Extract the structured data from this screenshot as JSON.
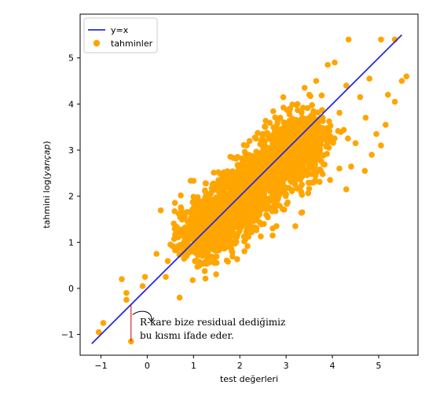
{
  "chart_data": {
    "type": "scatter",
    "title": "",
    "xlabel": "test değerleri",
    "ylabel_prefix": "tahmini log(",
    "ylabel_italic": "yarıçap",
    "ylabel_suffix": ")",
    "xlim": [
      -1.45,
      5.85
    ],
    "ylim": [
      -1.45,
      5.95
    ],
    "xticks": [
      -1,
      0,
      1,
      2,
      3,
      4,
      5
    ],
    "yticks": [
      -1,
      0,
      1,
      2,
      3,
      4,
      5
    ],
    "grid": false,
    "legend_position": "top-left",
    "series": [
      {
        "name": "y=x",
        "kind": "line",
        "color": "#2a2ad6",
        "x": [
          -1.2,
          5.5
        ],
        "y": [
          -1.2,
          5.5
        ]
      },
      {
        "name": "tahminler",
        "kind": "scatter",
        "color": "#ffa500",
        "cluster": {
          "center_from": [
            1.0,
            1.0
          ],
          "center_to": [
            3.6,
            3.4
          ],
          "spread_along": 0.85,
          "spread_across": 0.32,
          "count": 2400,
          "seed": 7
        },
        "points": [
          [
            -1.05,
            -0.95
          ],
          [
            -0.95,
            -0.75
          ],
          [
            -0.55,
            0.2
          ],
          [
            -0.45,
            -0.1
          ],
          [
            -0.45,
            -0.25
          ],
          [
            -0.35,
            -1.15
          ],
          [
            -0.1,
            0.05
          ],
          [
            -0.05,
            0.25
          ],
          [
            0.4,
            0.25
          ],
          [
            0.7,
            -0.2
          ],
          [
            0.2,
            0.75
          ],
          [
            0.5,
            0.95
          ],
          [
            0.75,
            1.25
          ],
          [
            1.05,
            0.6
          ],
          [
            0.95,
            1.45
          ],
          [
            3.2,
            1.35
          ],
          [
            3.35,
            1.65
          ],
          [
            3.6,
            2.3
          ],
          [
            3.75,
            2.55
          ],
          [
            3.95,
            2.35
          ],
          [
            4.15,
            2.6
          ],
          [
            4.3,
            2.15
          ],
          [
            4.5,
            3.15
          ],
          [
            4.7,
            2.55
          ],
          [
            4.85,
            2.9
          ],
          [
            4.95,
            3.35
          ],
          [
            5.05,
            3.1
          ],
          [
            5.15,
            3.55
          ],
          [
            5.2,
            4.2
          ],
          [
            5.35,
            4.05
          ],
          [
            5.5,
            4.5
          ],
          [
            5.6,
            4.6
          ],
          [
            5.35,
            5.4
          ],
          [
            5.05,
            5.4
          ],
          [
            4.35,
            5.4
          ],
          [
            3.4,
            4.35
          ],
          [
            3.65,
            4.5
          ],
          [
            3.25,
            4.0
          ],
          [
            3.5,
            4.2
          ],
          [
            3.9,
            4.85
          ],
          [
            4.05,
            4.9
          ],
          [
            2.75,
            3.2
          ],
          [
            2.55,
            3.5
          ],
          [
            2.15,
            3.1
          ],
          [
            1.95,
            2.85
          ],
          [
            3.25,
            3.6
          ],
          [
            3.05,
            3.4
          ],
          [
            4.6,
            4.15
          ],
          [
            4.3,
            4.4
          ],
          [
            4.8,
            4.55
          ]
        ]
      }
    ],
    "annotation": {
      "line1": "R-kare bize residual dediğimiz",
      "line2": "bu kısmı ifade eder.",
      "residual_x": -0.35,
      "residual_y_from": -1.15,
      "residual_y_to": -0.35
    }
  }
}
